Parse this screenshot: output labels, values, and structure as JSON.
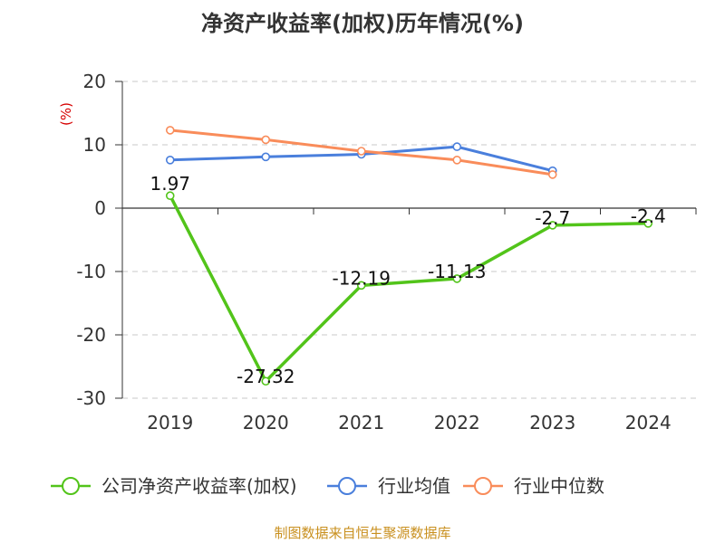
{
  "chart_data": {
    "type": "line",
    "title": "净资产收益率(加权)历年情况(%)",
    "ylabel": "(%)",
    "xlabel": "",
    "categories": [
      "2019",
      "2020",
      "2021",
      "2022",
      "2023",
      "2024"
    ],
    "ylim": [
      -30,
      20
    ],
    "yticks": [
      20,
      10,
      0,
      -10,
      -20,
      -30
    ],
    "grid": true,
    "legend_position": "bottom",
    "series": [
      {
        "name": "公司净资产收益率(加权)",
        "color": "#52c41a",
        "values": [
          1.97,
          -27.32,
          -12.19,
          -11.13,
          -2.7,
          -2.4
        ],
        "labels": [
          "1.97",
          "-27.32",
          "-12.19",
          "-11.13",
          "-2.7",
          "-2.4"
        ],
        "show_labels": true
      },
      {
        "name": "行业均值",
        "color": "#4a7fdc",
        "values": [
          7.6,
          8.1,
          8.5,
          9.7,
          5.9,
          null
        ]
      },
      {
        "name": "行业中位数",
        "color": "#f98c5a",
        "values": [
          12.3,
          10.8,
          9.0,
          7.6,
          5.3,
          null
        ]
      }
    ]
  },
  "footer": {
    "source": "制图数据来自恒生聚源数据库"
  }
}
